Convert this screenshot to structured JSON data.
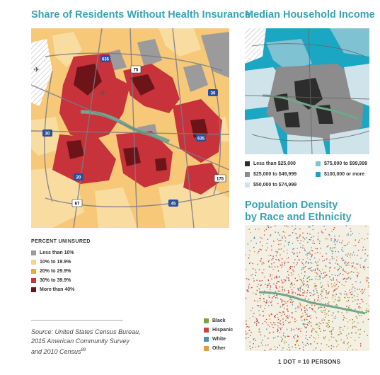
{
  "uninsured": {
    "title": "Share of Residents Without Health Insurance",
    "legend_title": "PERCENT UNINSURED",
    "legend": [
      {
        "label": "Less than 10%",
        "color": "#9b9b9b"
      },
      {
        "label": "10% to 19.9%",
        "color": "#f7d38f"
      },
      {
        "label": "20% to 29.9%",
        "color": "#f3a640"
      },
      {
        "label": "30% to 39.9%",
        "color": "#c8323a"
      },
      {
        "label": "More than 40%",
        "color": "#6d1418"
      }
    ],
    "highway_shields": [
      "635",
      "75",
      "30",
      "30",
      "635",
      "20",
      "175",
      "67",
      "45"
    ]
  },
  "income": {
    "title": "Median Household Income",
    "legend": [
      {
        "label": "Less than $25,000",
        "color": "#2d2d2d"
      },
      {
        "label": "$25,000 to $49,999",
        "color": "#8c8c8c"
      },
      {
        "label": "$50,000 to $74,999",
        "color": "#cfe3ea"
      },
      {
        "label": "$75,000 to $99,999",
        "color": "#7fc3d2"
      },
      {
        "label": "$100,000 or more",
        "color": "#1aa3c0"
      }
    ]
  },
  "density": {
    "title_line1": "Population Density",
    "title_line2": "by Race and Ethnicity",
    "legend": [
      {
        "label": "Black",
        "color": "#7aa33a"
      },
      {
        "label": "Hispanic",
        "color": "#c8453f"
      },
      {
        "label": "White",
        "color": "#4f8fb0"
      },
      {
        "label": "Other",
        "color": "#e59b3a"
      }
    ],
    "caption": "1 DOT = 10 PERSONS"
  },
  "source": {
    "line1": "Source: United States Census Bureau,",
    "line2": "2015 American Community Survey",
    "line3": "and 2010 Census",
    "superscript": "89"
  }
}
